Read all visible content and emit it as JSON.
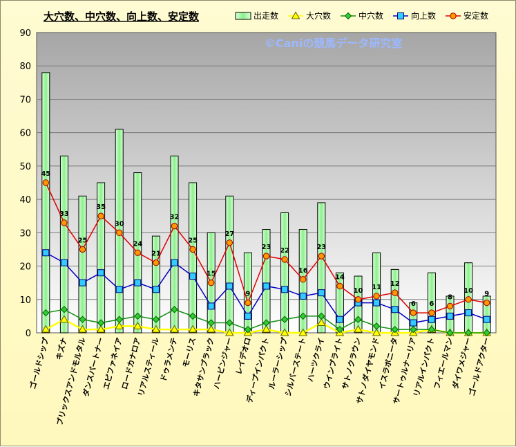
{
  "chart_data": {
    "type": "bar",
    "title": "大穴数、中穴数、向上数、安定数",
    "watermark": "©Caniの競馬データ研究室",
    "ylim": [
      0,
      90
    ],
    "yticks": [
      0,
      10,
      20,
      30,
      40,
      50,
      60,
      70,
      80,
      90
    ],
    "grid": true,
    "legend_position": "top-right",
    "categories": [
      "ゴールドシップ",
      "キズナ",
      "ブリックスアンドモルタル",
      "ダンスパートナー",
      "エピファネイア",
      "ロードカナロア",
      "リアルスティール",
      "ドゥラメンテ",
      "モーリス",
      "キタサンブラック",
      "ハービンジャー",
      "レイデオロ",
      "ディープインパクト",
      "ルーラーシップ",
      "シルバーステート",
      "ハーツクライ",
      "ウインブライト",
      "サトノクラウン",
      "サトノダイヤモンド",
      "イスラボニータ",
      "サートゥルナーリア",
      "リアルインパクト",
      "フィエールマン",
      "ダイワメジャー",
      "ゴールドアクター"
    ],
    "series": [
      {
        "name": "出走数",
        "kind": "bar",
        "color": "#8cf08c",
        "values": [
          78,
          53,
          41,
          45,
          61,
          48,
          29,
          53,
          45,
          30,
          41,
          24,
          31,
          36,
          31,
          39,
          18,
          17,
          24,
          19,
          9,
          18,
          11,
          21,
          11
        ]
      },
      {
        "name": "大穴数",
        "kind": "line",
        "color": "#ffff00",
        "marker": "triangle",
        "values": [
          1,
          4,
          1,
          1,
          2,
          2,
          1,
          1,
          1,
          1,
          0,
          0,
          1,
          0,
          0,
          3,
          0,
          1,
          0,
          0,
          0,
          1,
          0,
          0,
          0
        ]
      },
      {
        "name": "中穴数",
        "kind": "line",
        "color": "#109010",
        "marker": "diamond",
        "values": [
          6,
          7,
          4,
          3,
          4,
          5,
          4,
          7,
          5,
          3,
          3,
          1,
          3,
          4,
          5,
          5,
          1,
          4,
          2,
          1,
          1,
          1,
          0,
          0,
          0
        ]
      },
      {
        "name": "向上数",
        "kind": "line",
        "color": "#0000c0",
        "marker": "square",
        "values": [
          24,
          21,
          15,
          18,
          13,
          15,
          13,
          21,
          17,
          8,
          14,
          5,
          14,
          13,
          11,
          12,
          4,
          9,
          9,
          7,
          3,
          4,
          5,
          6,
          4
        ]
      },
      {
        "name": "安定数",
        "kind": "line",
        "color": "#e00000",
        "marker": "circle",
        "values": [
          45,
          33,
          25,
          35,
          30,
          24,
          21,
          32,
          25,
          15,
          27,
          9,
          23,
          22,
          16,
          23,
          14,
          10,
          11,
          12,
          6,
          6,
          8,
          10,
          9
        ]
      }
    ]
  }
}
